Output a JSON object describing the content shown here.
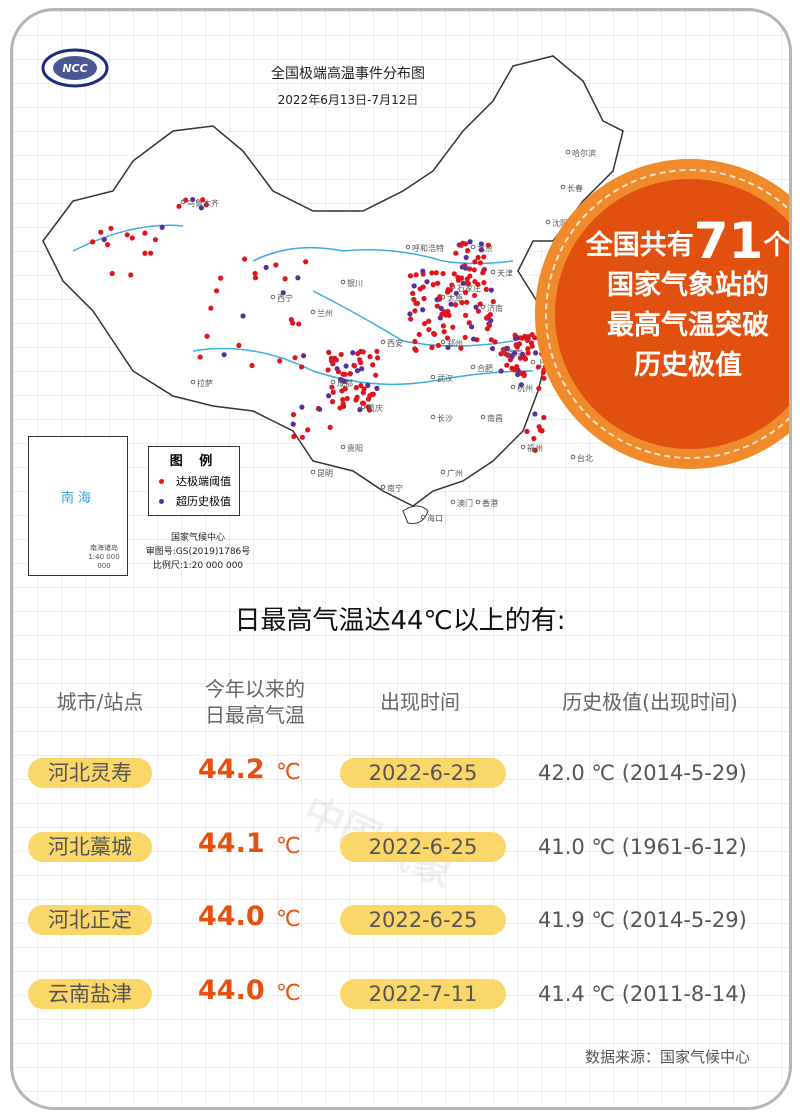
{
  "map": {
    "title": "全国极端高温事件分布图",
    "date_range": "2022年6月13日-7月12日",
    "logo_text": "NCC",
    "legend": {
      "title": "图 例",
      "items": [
        {
          "label": "达极端阈值",
          "color": "#e0141e"
        },
        {
          "label": "超历史极值",
          "color": "#5a2f9a"
        }
      ]
    },
    "inset": {
      "sea_label": "南海",
      "islands_label": "南海诸岛",
      "islands_scale": "1:40 000 000"
    },
    "credits": {
      "agency": "国家气候中心",
      "approval": "审图号:GS(2019)1786号",
      "scale": "比例尺:1:20 000 000"
    },
    "cities": [
      "乌鲁木齐",
      "哈尔滨",
      "长春",
      "沈阳",
      "呼和浩特",
      "北京",
      "天津",
      "石家庄",
      "太原",
      "济南",
      "西宁",
      "兰州",
      "银川",
      "西安",
      "郑州",
      "南京",
      "合肥",
      "上海",
      "杭州",
      "武汉",
      "成都",
      "重庆",
      "长沙",
      "南昌",
      "福州",
      "台北",
      "拉萨",
      "贵阳",
      "昆明",
      "南宁",
      "广州",
      "香港",
      "澳门",
      "海口"
    ]
  },
  "badge": {
    "prefix": "全国共有",
    "count": "71",
    "suffix": "个",
    "line2": "国家气象站的",
    "line3": "最高气温突破",
    "line4": "历史极值"
  },
  "headline": "日最高气温达44℃以上的有:",
  "table": {
    "headers": [
      "城市/站点",
      "今年以来的\n日最高气温",
      "出现时间",
      "历史极值(出现时间)"
    ],
    "rows": [
      {
        "station": "河北灵寿",
        "temp": "44.2",
        "unit": "℃",
        "date": "2022-6-25",
        "record": "42.0 ℃ (2014-5-29)"
      },
      {
        "station": "河北藁城",
        "temp": "44.1",
        "unit": "℃",
        "date": "2022-6-25",
        "record": "41.0 ℃ (1961-6-12)"
      },
      {
        "station": "河北正定",
        "temp": "44.0",
        "unit": "℃",
        "date": "2022-6-25",
        "record": "41.9 ℃ (2014-5-29)"
      },
      {
        "station": "云南盐津",
        "temp": "44.0",
        "unit": "℃",
        "date": "2022-7-11",
        "record": "41.4 ℃ (2011-8-14)"
      }
    ]
  },
  "watermark": "中国气象",
  "source": "数据来源：国家气候中心",
  "colors": {
    "accent": "#e65112",
    "pill": "#fbd669",
    "badge": "#e2500f",
    "badge_ring": "#f08a2a"
  }
}
